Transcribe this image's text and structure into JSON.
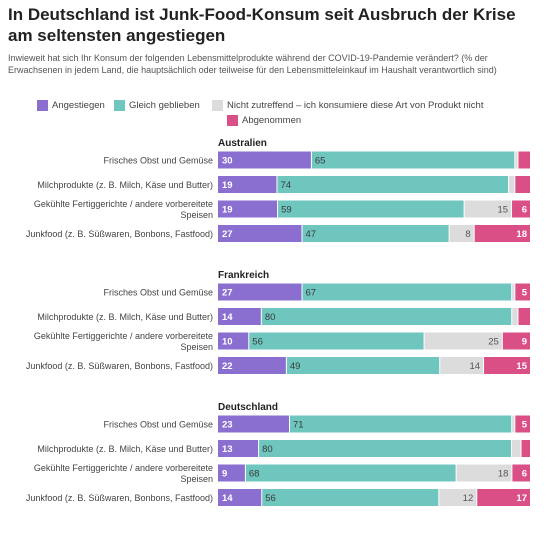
{
  "title": "In Deutschland ist Junk-Food-Konsum seit Ausbruch der Krise am seltensten angestiegen",
  "subtitle": "Inwieweit hat sich Ihr Konsum der folgenden Lebensmittelprodukte während der COVID-19-Pandemie verändert? (% der Erwachsenen in jedem Land, die hauptsächlich oder teilweise für den Lebensmitteleinkauf im Haushalt verantwortlich sind)",
  "colors": {
    "angestiegen": "#8a6fd1",
    "gleich": "#6ec6bf",
    "nicht": "#dcdcdc",
    "abgenommen": "#d94f86"
  },
  "legend": [
    {
      "key": "angestiegen",
      "label": "Angestiegen"
    },
    {
      "key": "gleich",
      "label": "Gleich geblieben"
    },
    {
      "key": "nicht",
      "label": "Nicht zutreffend – ich konsumiere diese Art von Produkt nicht"
    },
    {
      "key": "abgenommen",
      "label": "Abgenommen"
    }
  ],
  "chart_data": {
    "type": "bar",
    "stacked": true,
    "orientation": "horizontal",
    "series_order": [
      "angestiegen",
      "gleich",
      "nicht",
      "abgenommen"
    ],
    "groups": [
      {
        "name": "Australien",
        "rows": [
          {
            "label": [
              "Frisches Obst und Gemüse"
            ],
            "values": [
              30,
              65,
              1,
              4
            ],
            "shown": [
              "30",
              "65",
              "",
              ""
            ]
          },
          {
            "label": [
              "Milchprodukte (z. B. Milch, Käse und Butter)"
            ],
            "values": [
              19,
              74,
              2,
              5
            ],
            "shown": [
              "19",
              "74",
              "",
              ""
            ]
          },
          {
            "label": [
              "Gekühlte Fertiggerichte / andere vorbereitete",
              "Speisen"
            ],
            "values": [
              19,
              59,
              15,
              6
            ],
            "shown": [
              "19",
              "59",
              "15",
              "6"
            ]
          },
          {
            "label": [
              "Junkfood (z. B. Süßwaren, Bonbons, Fastfood)"
            ],
            "values": [
              27,
              47,
              8,
              18
            ],
            "shown": [
              "27",
              "47",
              "8",
              "18"
            ]
          }
        ]
      },
      {
        "name": "Frankreich",
        "rows": [
          {
            "label": [
              "Frisches Obst und Gemüse"
            ],
            "values": [
              27,
              67,
              1,
              5
            ],
            "shown": [
              "27",
              "67",
              "",
              "5"
            ]
          },
          {
            "label": [
              "Milchprodukte (z. B. Milch, Käse und Butter)"
            ],
            "values": [
              14,
              80,
              2,
              4
            ],
            "shown": [
              "14",
              "80",
              "",
              ""
            ]
          },
          {
            "label": [
              "Gekühlte Fertiggerichte / andere vorbereitete",
              "Speisen"
            ],
            "values": [
              10,
              56,
              25,
              9
            ],
            "shown": [
              "10",
              "56",
              "25",
              "9"
            ]
          },
          {
            "label": [
              "Junkfood (z. B. Süßwaren, Bonbons, Fastfood)"
            ],
            "values": [
              22,
              49,
              14,
              15
            ],
            "shown": [
              "22",
              "49",
              "14",
              "15"
            ]
          }
        ]
      },
      {
        "name": "Deutschland",
        "rows": [
          {
            "label": [
              "Frisches Obst und Gemüse"
            ],
            "values": [
              23,
              71,
              1,
              5
            ],
            "shown": [
              "23",
              "71",
              "",
              "5"
            ]
          },
          {
            "label": [
              "Milchprodukte (z. B. Milch, Käse und Butter)"
            ],
            "values": [
              13,
              80,
              3,
              3
            ],
            "shown": [
              "13",
              "80",
              "",
              ""
            ]
          },
          {
            "label": [
              "Gekühlte Fertiggerichte / andere vorbereitete",
              "Speisen"
            ],
            "values": [
              9,
              68,
              18,
              6
            ],
            "shown": [
              "9",
              "68",
              "18",
              "6"
            ]
          },
          {
            "label": [
              "Junkfood (z. B. Süßwaren, Bonbons, Fastfood)"
            ],
            "values": [
              14,
              56,
              12,
              17
            ],
            "shown": [
              "14",
              "56",
              "12",
              "17"
            ]
          }
        ]
      }
    ]
  }
}
